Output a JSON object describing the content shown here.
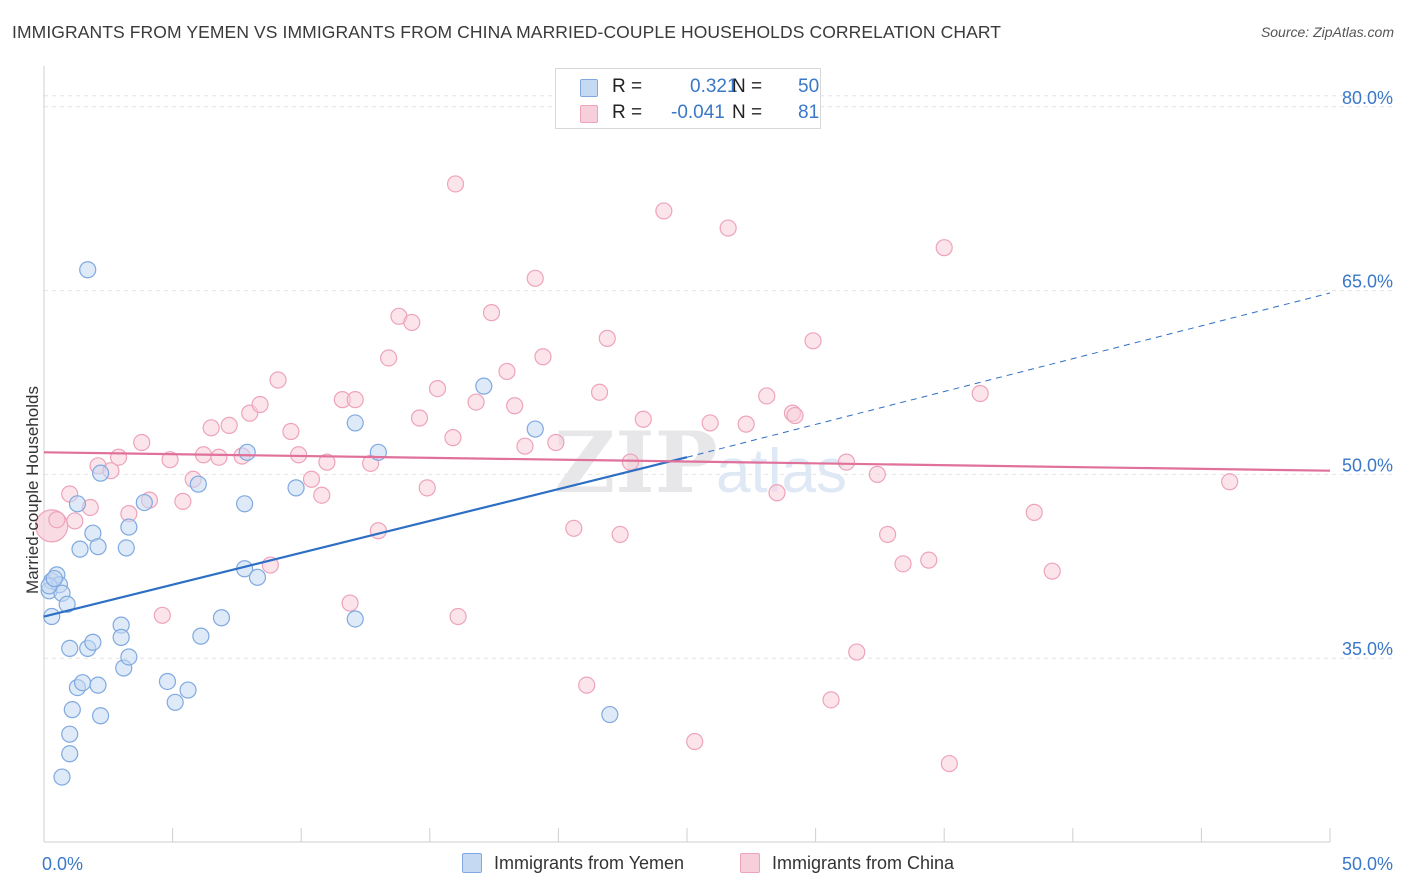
{
  "title": "IMMIGRANTS FROM YEMEN VS IMMIGRANTS FROM CHINA MARRIED-COUPLE HOUSEHOLDS CORRELATION CHART",
  "source": "Source: ZipAtlas.com",
  "watermark": {
    "zip": "ZIP",
    "atlas": "atlas"
  },
  "legend": {
    "r_label": "R =",
    "n_label": "N =",
    "rows": [
      {
        "r": "0.321",
        "n": "50"
      },
      {
        "r": "-0.041",
        "n": "81"
      }
    ]
  },
  "chart_data": {
    "type": "scatter",
    "title": "IMMIGRANTS FROM YEMEN VS IMMIGRANTS FROM CHINA MARRIED-COUPLE HOUSEHOLDS CORRELATION CHART",
    "xlabel": "",
    "ylabel": "Married-couple Households",
    "xlim": [
      0,
      50
    ],
    "ylim": [
      20,
      83
    ],
    "x_tick_labels": [
      "0.0%",
      "50.0%"
    ],
    "y_ticks": [
      {
        "value": 35,
        "label": "35.0%"
      },
      {
        "value": 50,
        "label": "50.0%"
      },
      {
        "value": 65,
        "label": "65.0%"
      },
      {
        "value": 80,
        "label": "80.0%"
      }
    ],
    "grid": true,
    "legend_position": "top-center",
    "series": [
      {
        "name": "Immigrants from Yemen",
        "color": "#7fa9e0",
        "fill": "#c5d9f3",
        "line_color": "#2d6fc4",
        "trend": {
          "x0": 0,
          "y0": 38.4,
          "x1": 25,
          "y1": 51.4,
          "x_dashed_end": 50,
          "y_dashed_end": 64.8
        },
        "points": [
          [
            0.3,
            41.3
          ],
          [
            0.2,
            40.5
          ],
          [
            0.3,
            38.4
          ],
          [
            0.5,
            41.8
          ],
          [
            0.6,
            41.0
          ],
          [
            0.7,
            40.3
          ],
          [
            0.9,
            39.4
          ],
          [
            1.0,
            35.8
          ],
          [
            1.1,
            30.8
          ],
          [
            1.0,
            28.8
          ],
          [
            1.0,
            27.2
          ],
          [
            0.7,
            25.3
          ],
          [
            1.3,
            32.6
          ],
          [
            1.5,
            33.0
          ],
          [
            1.7,
            35.8
          ],
          [
            1.9,
            36.3
          ],
          [
            2.1,
            32.8
          ],
          [
            2.2,
            30.3
          ],
          [
            1.4,
            43.9
          ],
          [
            1.9,
            45.2
          ],
          [
            2.1,
            44.1
          ],
          [
            1.3,
            47.6
          ],
          [
            2.2,
            50.1
          ],
          [
            1.7,
            66.7
          ],
          [
            3.0,
            37.7
          ],
          [
            3.0,
            36.7
          ],
          [
            3.1,
            34.2
          ],
          [
            3.3,
            35.1
          ],
          [
            3.2,
            44.0
          ],
          [
            3.3,
            45.7
          ],
          [
            3.9,
            47.7
          ],
          [
            4.8,
            33.1
          ],
          [
            5.1,
            31.4
          ],
          [
            5.6,
            32.4
          ],
          [
            6.0,
            49.2
          ],
          [
            6.1,
            36.8
          ],
          [
            6.9,
            38.3
          ],
          [
            7.8,
            42.3
          ],
          [
            7.8,
            47.6
          ],
          [
            7.9,
            51.8
          ],
          [
            8.3,
            41.6
          ],
          [
            9.8,
            48.9
          ],
          [
            12.1,
            54.2
          ],
          [
            12.1,
            38.2
          ],
          [
            13.0,
            51.8
          ],
          [
            17.1,
            57.2
          ],
          [
            19.1,
            53.7
          ],
          [
            22.0,
            30.4
          ],
          [
            0.2,
            40.9
          ],
          [
            0.4,
            41.5
          ]
        ]
      },
      {
        "name": "Immigrants from China",
        "color": "#eea3bb",
        "fill": "#f7cfdb",
        "line_color": "#e0719a",
        "trend": {
          "x0": 0,
          "y0": 51.8,
          "x1": 50,
          "y1": 50.3
        },
        "points": [
          [
            0.3,
            45.8
          ],
          [
            0.5,
            46.3
          ],
          [
            1.0,
            48.4
          ],
          [
            1.8,
            47.3
          ],
          [
            1.2,
            46.2
          ],
          [
            2.1,
            50.7
          ],
          [
            2.6,
            50.3
          ],
          [
            2.9,
            51.4
          ],
          [
            3.3,
            46.8
          ],
          [
            3.8,
            52.6
          ],
          [
            4.1,
            47.9
          ],
          [
            4.6,
            38.5
          ],
          [
            4.9,
            51.2
          ],
          [
            5.4,
            47.8
          ],
          [
            5.8,
            49.6
          ],
          [
            6.2,
            51.6
          ],
          [
            6.5,
            53.8
          ],
          [
            6.8,
            51.4
          ],
          [
            7.2,
            54.0
          ],
          [
            7.7,
            51.5
          ],
          [
            8.0,
            55.0
          ],
          [
            8.4,
            55.7
          ],
          [
            8.8,
            42.6
          ],
          [
            9.1,
            57.7
          ],
          [
            9.6,
            53.5
          ],
          [
            9.9,
            51.6
          ],
          [
            10.4,
            49.6
          ],
          [
            10.8,
            48.3
          ],
          [
            11.0,
            51.0
          ],
          [
            11.6,
            56.1
          ],
          [
            11.9,
            39.5
          ],
          [
            12.1,
            56.1
          ],
          [
            12.7,
            50.9
          ],
          [
            13.0,
            45.4
          ],
          [
            13.4,
            59.5
          ],
          [
            13.8,
            62.9
          ],
          [
            14.3,
            62.4
          ],
          [
            14.6,
            54.6
          ],
          [
            14.9,
            48.9
          ],
          [
            15.3,
            57.0
          ],
          [
            15.9,
            53.0
          ],
          [
            16.1,
            38.4
          ],
          [
            16.0,
            73.7
          ],
          [
            16.8,
            55.9
          ],
          [
            17.4,
            63.2
          ],
          [
            18.0,
            58.4
          ],
          [
            18.3,
            55.6
          ],
          [
            18.7,
            52.3
          ],
          [
            19.1,
            66.0
          ],
          [
            19.4,
            59.6
          ],
          [
            19.9,
            52.6
          ],
          [
            20.6,
            45.6
          ],
          [
            21.1,
            32.8
          ],
          [
            21.6,
            56.7
          ],
          [
            21.9,
            61.1
          ],
          [
            22.4,
            45.1
          ],
          [
            22.8,
            51.0
          ],
          [
            23.3,
            54.5
          ],
          [
            24.1,
            71.5
          ],
          [
            25.3,
            28.2
          ],
          [
            25.9,
            54.2
          ],
          [
            26.6,
            70.1
          ],
          [
            27.3,
            54.1
          ],
          [
            28.1,
            56.4
          ],
          [
            28.5,
            48.5
          ],
          [
            29.1,
            55.0
          ],
          [
            29.2,
            54.8
          ],
          [
            29.9,
            60.9
          ],
          [
            30.6,
            31.6
          ],
          [
            31.2,
            51.0
          ],
          [
            31.6,
            35.5
          ],
          [
            32.4,
            50.0
          ],
          [
            32.8,
            45.1
          ],
          [
            33.4,
            42.7
          ],
          [
            34.4,
            43.0
          ],
          [
            35.0,
            68.5
          ],
          [
            35.2,
            26.4
          ],
          [
            36.4,
            56.6
          ],
          [
            38.5,
            46.9
          ],
          [
            39.2,
            42.1
          ],
          [
            46.1,
            49.4
          ]
        ]
      }
    ]
  }
}
